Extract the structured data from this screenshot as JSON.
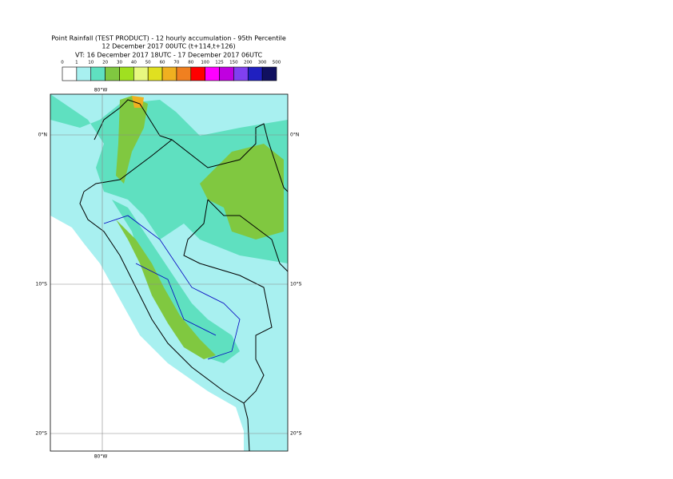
{
  "title": [
    "Point Rainfall (TEST PRODUCT) - 12 hourly accumulation - 95th Percentile",
    "12 December 2017 00UTC (t+114,t+126)",
    "VT: 16 December 2017 18UTC - 17 December 2017 06UTC"
  ],
  "legend": {
    "ticks": [
      0,
      1,
      10,
      20,
      30,
      40,
      50,
      60,
      70,
      80,
      100,
      125,
      150,
      200,
      300,
      500
    ],
    "colors": [
      "#ffffff",
      "#a8f0f0",
      "#5fe0c0",
      "#80c840",
      "#a0e020",
      "#e8f880",
      "#e0e020",
      "#f0b020",
      "#f08020",
      "#ff0000",
      "#ff00ff",
      "#c000e0",
      "#8040f0",
      "#2020c0",
      "#101060"
    ]
  },
  "map": {
    "lon_labels": [
      "80°W"
    ],
    "lat_labels": [
      "0°N",
      "10°S",
      "20°S"
    ]
  }
}
